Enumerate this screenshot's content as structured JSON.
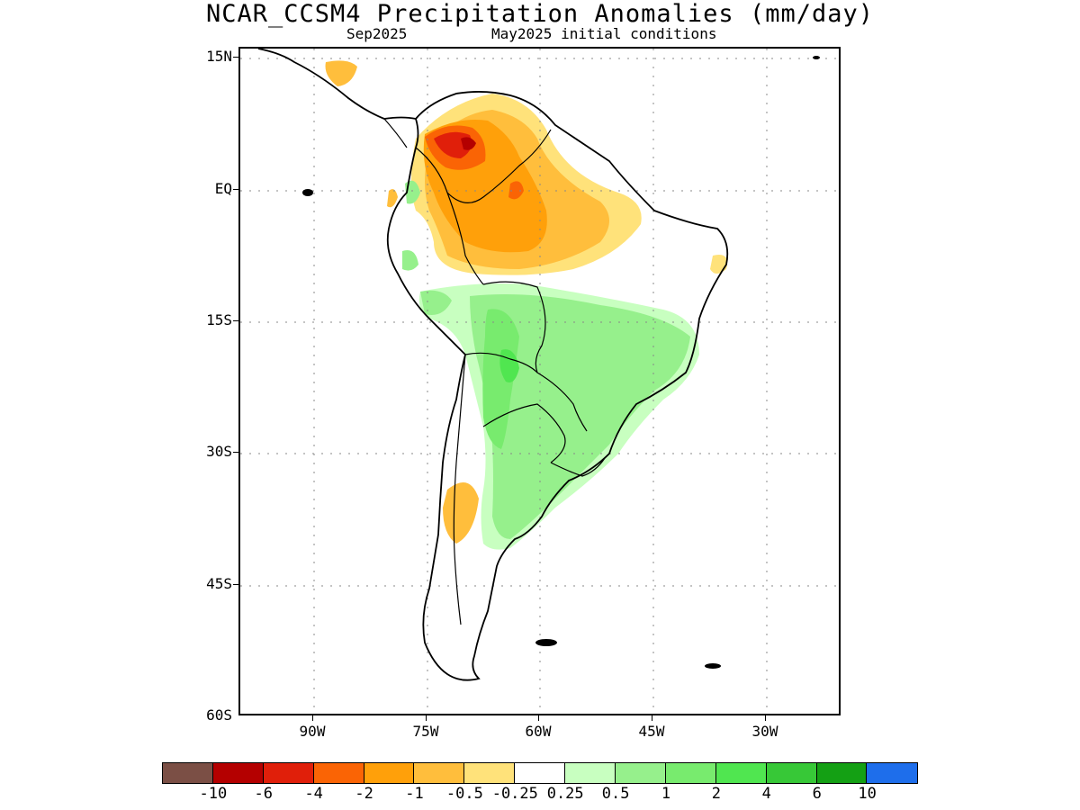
{
  "title": "NCAR_CCSM4 Precipitation Anomalies (mm/day)",
  "subtitle_left": "Sep2025",
  "subtitle_right": "May2025 initial conditions",
  "lat_labels": [
    "15N",
    "EQ",
    "15S",
    "30S",
    "45S",
    "60S"
  ],
  "lon_labels": [
    "90W",
    "75W",
    "60W",
    "45W",
    "30W"
  ],
  "colorbar": {
    "colors": [
      "#7b4f45",
      "#b40000",
      "#e01f0a",
      "#fa6405",
      "#ffa00a",
      "#ffbe3c",
      "#ffe27a",
      "#ffffff",
      "#c8ffc0",
      "#96f08c",
      "#78eb6e",
      "#50e650",
      "#37c837",
      "#14a014",
      "#1e6eeb"
    ],
    "labels": [
      "-10",
      "-6",
      "-4",
      "-2",
      "-1",
      "-0.5",
      "-0.25",
      "0.25",
      "0.5",
      "1",
      "2",
      "4",
      "6",
      "10"
    ]
  }
}
